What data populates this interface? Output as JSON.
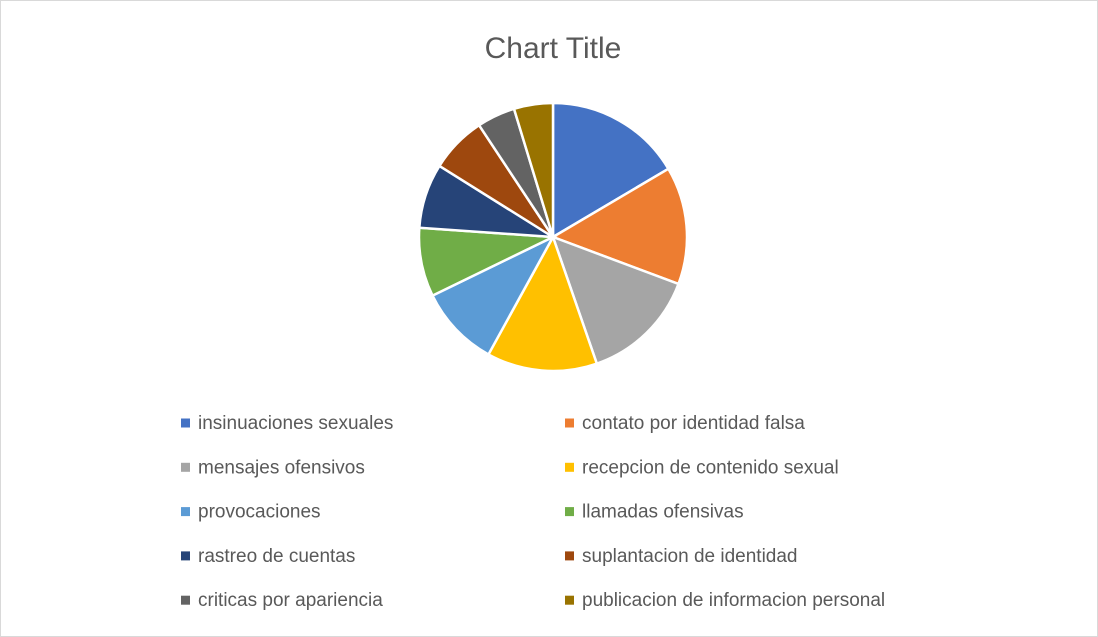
{
  "chart_data": {
    "type": "pie",
    "title": "Chart Title",
    "categories": [
      "insinuaciones sexuales",
      "contato por identidad falsa",
      "mensajes ofensivos",
      "recepcion de contenido sexual",
      "provocaciones",
      "llamadas ofensivas",
      "rastreo de cuentas",
      "suplantacion de identidad",
      "criticas por apariencia",
      "publicacion de informacion personal"
    ],
    "values": [
      16.5,
      14.2,
      14,
      13.3,
      9.8,
      8.3,
      7.8,
      6.8,
      4.6,
      4.7
    ],
    "colors": [
      "#4472c4",
      "#ed7d31",
      "#a5a5a5",
      "#ffc000",
      "#5b9bd5",
      "#70ad47",
      "#264478",
      "#9e480e",
      "#636363",
      "#997300"
    ],
    "legend": "bottom"
  }
}
